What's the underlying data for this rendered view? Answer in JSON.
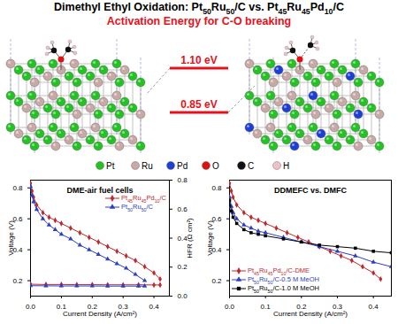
{
  "title": "Dimethyl Ethyl Oxidation: Pt50Ru50/C vs. Pt45Ru45Pd10/C",
  "subtitle": "Activation Energy for C-O breaking",
  "diagram": {
    "levels": [
      {
        "value": 1.1,
        "label": "1.10 eV",
        "color": "#e8101a"
      },
      {
        "value": 0.85,
        "label": "0.85 eV",
        "color": "#e8101a"
      }
    ],
    "atoms": [
      {
        "label": "Pt",
        "color": "#22c322"
      },
      {
        "label": "Ru",
        "color": "#c9a9a6"
      },
      {
        "label": "Pd",
        "color": "#1d3fd6"
      },
      {
        "label": "O",
        "color": "#e01010"
      },
      {
        "label": "C",
        "color": "#111111"
      },
      {
        "label": "H",
        "color": "#f0c0c8"
      }
    ]
  },
  "chart_data": [
    {
      "type": "line",
      "title": "DME-air fuel cells",
      "x_label": "Current Density (A/cm²)",
      "y_label": "Voltage (V)",
      "y2_label": "HFR (Ω cm²)",
      "xlim": [
        0,
        0.45
      ],
      "xticks": [
        {
          "value": 0,
          "label": "0.0"
        },
        0.1,
        0.2,
        0.3,
        0.4
      ],
      "ylim": [
        0.1,
        0.85
      ],
      "yticks": [
        0.2,
        0.4,
        0.6,
        0.8
      ],
      "y2lim": [
        0,
        0.8
      ],
      "y2ticks": [
        {
          "value": 0,
          "label": "0.0"
        },
        0.2,
        0.4,
        0.6,
        0.8
      ],
      "legend": "top-right",
      "series": [
        {
          "name": "Pt45Ru45Pd10/C",
          "color": "#c0282d",
          "marker": "diamond",
          "x": [
            0,
            0.005,
            0.01,
            0.02,
            0.04,
            0.06,
            0.08,
            0.1,
            0.13,
            0.16,
            0.19,
            0.22,
            0.25,
            0.28,
            0.31,
            0.34,
            0.37,
            0.4,
            0.42
          ],
          "values": [
            0.83,
            0.78,
            0.74,
            0.69,
            0.64,
            0.61,
            0.59,
            0.57,
            0.54,
            0.51,
            0.48,
            0.45,
            0.42,
            0.39,
            0.36,
            0.33,
            0.29,
            0.25,
            0.21
          ]
        },
        {
          "name": "Pt50Ru50/C",
          "color": "#2b3fc4",
          "marker": "triangle",
          "x": [
            0,
            0.005,
            0.01,
            0.02,
            0.04,
            0.06,
            0.08,
            0.1,
            0.13,
            0.16,
            0.19,
            0.22,
            0.25,
            0.28,
            0.31,
            0.34,
            0.37
          ],
          "values": [
            0.81,
            0.75,
            0.71,
            0.66,
            0.6,
            0.56,
            0.53,
            0.5,
            0.47,
            0.43,
            0.4,
            0.37,
            0.34,
            0.31,
            0.28,
            0.24,
            0.2
          ]
        },
        {
          "color": "#c0282d",
          "marker": "diamond",
          "axis": "y2",
          "x": [
            0,
            0.05,
            0.1,
            0.15,
            0.2,
            0.25,
            0.3,
            0.35,
            0.4,
            0.42
          ],
          "values": [
            0.082,
            0.08,
            0.08,
            0.079,
            0.079,
            0.078,
            0.078,
            0.078,
            0.077,
            0.077
          ]
        },
        {
          "color": "#2b3fc4",
          "marker": "triangle",
          "axis": "y2",
          "x": [
            0,
            0.05,
            0.1,
            0.15,
            0.2,
            0.25,
            0.3,
            0.35,
            0.37
          ],
          "values": [
            0.072,
            0.071,
            0.07,
            0.07,
            0.07,
            0.069,
            0.069,
            0.069,
            0.069
          ]
        }
      ]
    },
    {
      "type": "line",
      "title": "DDMEFC vs. DMFC",
      "x_label": "Current Density (A/cm²)",
      "y_label": "Voltage (V)",
      "xlim": [
        0,
        0.45
      ],
      "xticks": [
        {
          "value": 0,
          "label": "0.0"
        },
        0.1,
        0.2,
        0.3,
        0.4
      ],
      "ylim": [
        0.1,
        0.85
      ],
      "yticks": [
        0.2,
        0.4,
        0.6,
        0.8
      ],
      "legend": "bottom-left",
      "series": [
        {
          "name": "Pt45Ru45Pd10/C-DME",
          "color": "#c0282d",
          "marker": "diamond",
          "x": [
            0,
            0.005,
            0.01,
            0.02,
            0.04,
            0.06,
            0.08,
            0.1,
            0.13,
            0.16,
            0.19,
            0.22,
            0.25,
            0.28,
            0.31,
            0.34,
            0.37,
            0.4,
            0.42
          ],
          "values": [
            0.83,
            0.78,
            0.74,
            0.69,
            0.64,
            0.61,
            0.59,
            0.57,
            0.54,
            0.51,
            0.48,
            0.45,
            0.42,
            0.39,
            0.36,
            0.33,
            0.29,
            0.25,
            0.21
          ]
        },
        {
          "name": "Pt50Ru50/C-0.5 M MeOH",
          "color": "#2b3fc4",
          "marker": "triangle",
          "x": [
            0,
            0.005,
            0.01,
            0.02,
            0.04,
            0.06,
            0.08,
            0.1,
            0.15,
            0.2,
            0.25,
            0.3,
            0.35,
            0.4,
            0.45
          ],
          "values": [
            0.74,
            0.68,
            0.64,
            0.6,
            0.56,
            0.54,
            0.52,
            0.51,
            0.48,
            0.45,
            0.42,
            0.39,
            0.36,
            0.32,
            0.29
          ]
        },
        {
          "name": "Pt50Ru50/C-1.0 M MeOH",
          "color": "#000000",
          "marker": "square",
          "x": [
            0,
            0.005,
            0.01,
            0.02,
            0.04,
            0.06,
            0.08,
            0.1,
            0.15,
            0.2,
            0.25,
            0.3,
            0.35,
            0.4,
            0.45
          ],
          "values": [
            0.72,
            0.65,
            0.61,
            0.57,
            0.53,
            0.51,
            0.5,
            0.49,
            0.47,
            0.45,
            0.43,
            0.42,
            0.41,
            0.39,
            0.38
          ]
        }
      ]
    }
  ]
}
